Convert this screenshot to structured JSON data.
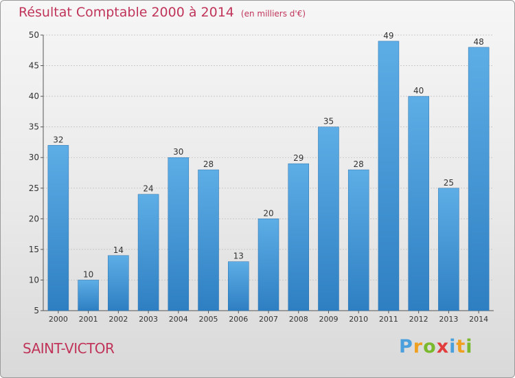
{
  "colors": {
    "title": "#c0345a",
    "bar_top": "#5dade6",
    "bar_bottom": "#2e7fc2",
    "grid": "#c8c8c8",
    "axis": "#555555"
  },
  "commune": "SAINT-VICTOR",
  "logo": {
    "text": "Proxiti",
    "letter_colors": [
      "#4aa0dc",
      "#f0a020",
      "#7ab82e",
      "#e23c3c",
      "#4aa0dc",
      "#f0a020",
      "#7ab82e"
    ]
  },
  "chart_data": {
    "type": "bar",
    "title": "Résultat Comptable 2000 à 2014",
    "subtitle": "(en milliers d'€)",
    "categories": [
      "2000",
      "2001",
      "2002",
      "2003",
      "2004",
      "2005",
      "2006",
      "2007",
      "2008",
      "2009",
      "2010",
      "2011",
      "2012",
      "2013",
      "2014"
    ],
    "values": [
      32,
      10,
      14,
      24,
      30,
      28,
      13,
      20,
      29,
      35,
      28,
      49,
      40,
      25,
      48
    ],
    "ylim": [
      5,
      50
    ],
    "yticks": [
      5,
      10,
      15,
      20,
      25,
      30,
      35,
      40,
      45,
      50
    ],
    "grid": true,
    "xlabel": "",
    "ylabel": ""
  }
}
